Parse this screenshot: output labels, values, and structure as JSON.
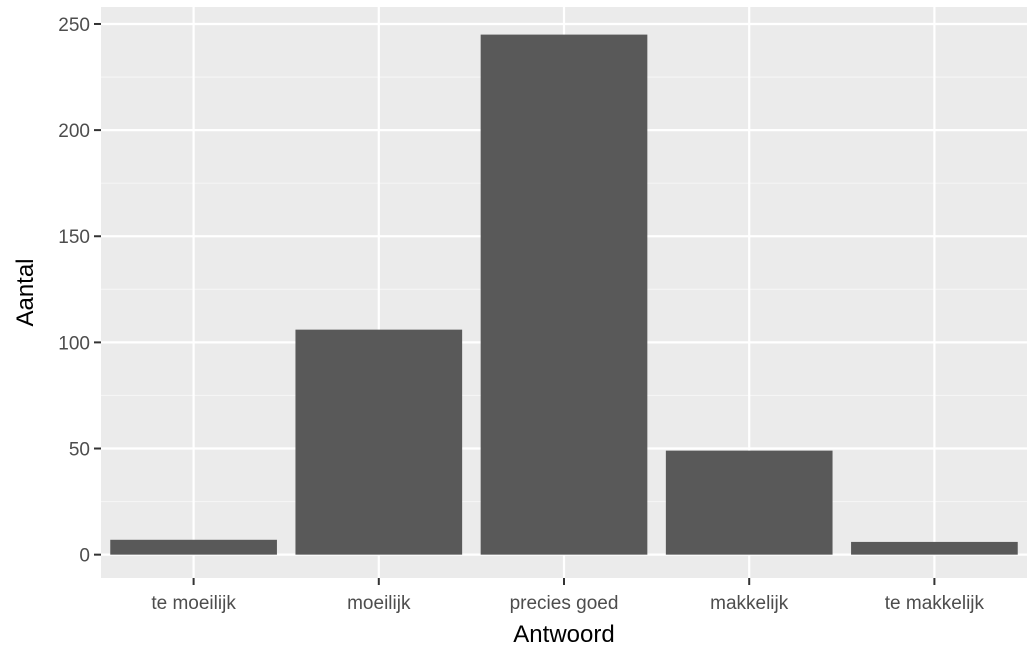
{
  "chart_data": {
    "type": "bar",
    "categories": [
      "te moeilijk",
      "moeilijk",
      "precies goed",
      "makkelijk",
      "te makkelijk"
    ],
    "values": [
      7,
      106,
      245,
      49,
      6
    ],
    "xlabel": "Antwoord",
    "ylabel": "Aantal",
    "ylim": [
      -11,
      258
    ],
    "yticks": [
      0,
      50,
      100,
      150,
      200,
      250
    ],
    "grid": true,
    "colors": {
      "bar": "#595959",
      "panel": "#ebebeb",
      "grid_major": "#ffffff",
      "grid_minor": "#f5f5f5",
      "tick_text": "#4d4d4d",
      "tick_mark": "#333333"
    }
  }
}
